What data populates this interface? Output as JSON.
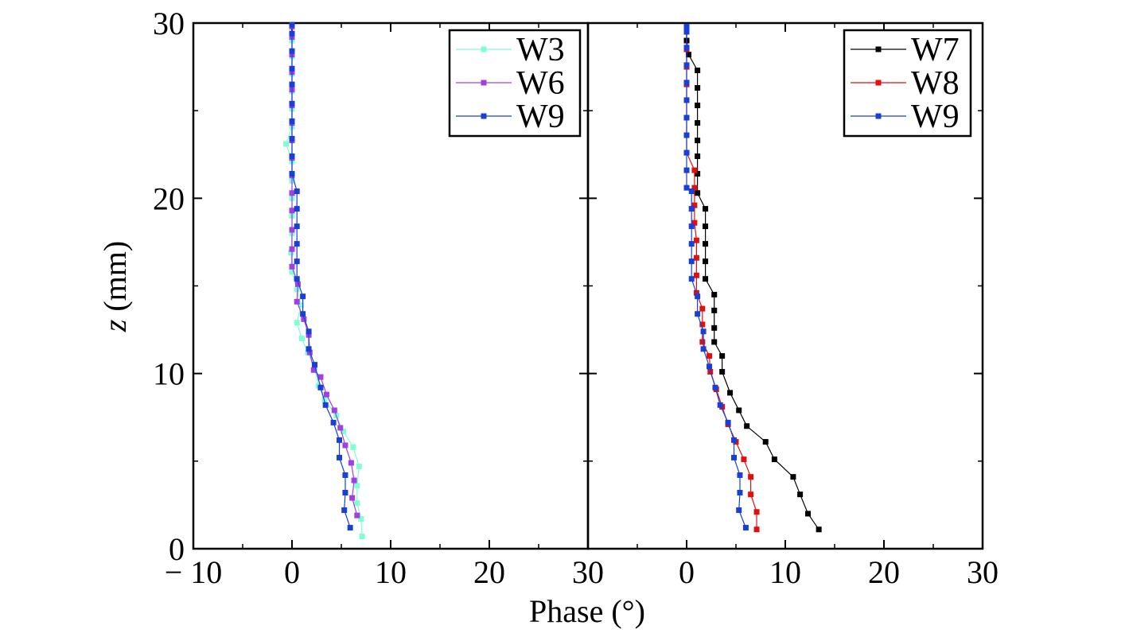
{
  "chart_data": {
    "type": "line",
    "xlabel": "Phase (°)",
    "ylabel_italic": "z",
    "ylabel_rest": " (mm)",
    "ylim": [
      0,
      30
    ],
    "y_ticks": [
      0,
      10,
      20,
      30
    ],
    "y_tick_labels": [
      "0",
      "10",
      "20",
      "30"
    ],
    "grid": false,
    "legend_placement": "top-right",
    "panels": [
      {
        "xlim": [
          -10,
          30
        ],
        "x_ticks": [
          -10,
          0,
          10,
          20
        ],
        "x_tick_labels": [
          "− 10",
          "0",
          "10",
          "20"
        ],
        "series": [
          {
            "name": "W3",
            "color": "#7fffd4",
            "points": [
              [
                7.1,
                0.7
              ],
              [
                7.0,
                1.7
              ],
              [
                6.6,
                2.6
              ],
              [
                6.6,
                3.6
              ],
              [
                6.8,
                4.7
              ],
              [
                6.2,
                5.8
              ],
              [
                5.2,
                6.7
              ],
              [
                4.5,
                7.6
              ],
              [
                3.3,
                8.5
              ],
              [
                2.7,
                9.3
              ],
              [
                2.3,
                10.3
              ],
              [
                1.6,
                11.2
              ],
              [
                1.0,
                12.0
              ],
              [
                0.5,
                12.9
              ],
              [
                0.9,
                13.9
              ],
              [
                0.5,
                14.8
              ],
              [
                0.0,
                15.8
              ],
              [
                -0.1,
                16.9
              ],
              [
                0.0,
                18.0
              ],
              [
                0.0,
                19.0
              ],
              [
                0.0,
                20.0
              ],
              [
                0.0,
                21.0
              ],
              [
                0.0,
                22.1
              ],
              [
                -0.6,
                23.1
              ],
              [
                0.0,
                24.1
              ],
              [
                0.0,
                25.1
              ],
              [
                0.0,
                26.1
              ],
              [
                0.0,
                27.1
              ],
              [
                0.0,
                28.1
              ],
              [
                0.0,
                29.0
              ],
              [
                0.0,
                29.8
              ]
            ]
          },
          {
            "name": "W6",
            "color": "#a040e0",
            "points": [
              [
                6.6,
                1.9
              ],
              [
                6.1,
                2.9
              ],
              [
                6.3,
                3.9
              ],
              [
                6.0,
                4.9
              ],
              [
                5.4,
                5.9
              ],
              [
                4.9,
                6.9
              ],
              [
                4.3,
                7.9
              ],
              [
                3.5,
                8.8
              ],
              [
                2.9,
                9.8
              ],
              [
                2.2,
                10.2
              ],
              [
                1.8,
                11.2
              ],
              [
                1.7,
                12.2
              ],
              [
                1.2,
                13.1
              ],
              [
                0.5,
                14.1
              ],
              [
                0.6,
                15.1
              ],
              [
                0.0,
                16.1
              ],
              [
                0.0,
                17.1
              ],
              [
                0.0,
                18.2
              ],
              [
                0.0,
                19.3
              ],
              [
                0.0,
                20.3
              ],
              [
                0.0,
                21.3
              ],
              [
                0.0,
                22.3
              ],
              [
                0.0,
                23.3
              ],
              [
                0.0,
                24.3
              ],
              [
                0.0,
                25.3
              ],
              [
                0.0,
                26.2
              ],
              [
                0.0,
                27.2
              ],
              [
                0.0,
                28.2
              ],
              [
                0.0,
                29.2
              ],
              [
                0.0,
                29.8
              ]
            ]
          },
          {
            "name": "W9",
            "color": "#1a3fd6",
            "points": [
              [
                5.9,
                1.2
              ],
              [
                5.3,
                2.2
              ],
              [
                5.4,
                3.2
              ],
              [
                5.4,
                4.2
              ],
              [
                4.8,
                5.2
              ],
              [
                4.8,
                6.2
              ],
              [
                4.2,
                7.2
              ],
              [
                3.4,
                8.2
              ],
              [
                2.9,
                9.2
              ],
              [
                2.3,
                10.5
              ],
              [
                1.7,
                11.4
              ],
              [
                1.7,
                12.4
              ],
              [
                1.1,
                13.4
              ],
              [
                1.1,
                14.4
              ],
              [
                0.5,
                15.4
              ],
              [
                0.5,
                16.4
              ],
              [
                0.5,
                17.4
              ],
              [
                0.5,
                18.4
              ],
              [
                0.5,
                19.4
              ],
              [
                0.5,
                20.4
              ],
              [
                0.0,
                21.4
              ],
              [
                0.0,
                22.4
              ],
              [
                0.0,
                23.4
              ],
              [
                0.0,
                24.4
              ],
              [
                0.0,
                25.4
              ],
              [
                0.0,
                26.5
              ],
              [
                0.0,
                27.4
              ],
              [
                0.0,
                28.4
              ],
              [
                0.0,
                29.4
              ],
              [
                0.0,
                29.9
              ]
            ]
          }
        ]
      },
      {
        "xlim": [
          -10,
          30
        ],
        "x_ticks": [
          0,
          10,
          20
        ],
        "x_tick_labels": [
          "0",
          "10",
          "20"
        ],
        "series": [
          {
            "name": "W7",
            "color": "#000000",
            "points": [
              [
                13.4,
                1.1
              ],
              [
                12.3,
                2.0
              ],
              [
                11.5,
                3.1
              ],
              [
                10.8,
                4.1
              ],
              [
                8.9,
                5.1
              ],
              [
                8.0,
                6.1
              ],
              [
                6.1,
                7.0
              ],
              [
                5.3,
                7.9
              ],
              [
                4.4,
                8.9
              ],
              [
                3.6,
                10.1
              ],
              [
                3.6,
                11.0
              ],
              [
                2.8,
                11.8
              ],
              [
                2.8,
                12.6
              ],
              [
                2.8,
                13.6
              ],
              [
                2.8,
                14.5
              ],
              [
                1.9,
                15.4
              ],
              [
                1.9,
                16.4
              ],
              [
                1.9,
                17.4
              ],
              [
                1.9,
                18.4
              ],
              [
                1.9,
                19.4
              ],
              [
                1.1,
                20.3
              ],
              [
                1.1,
                21.4
              ],
              [
                1.1,
                22.4
              ],
              [
                1.1,
                23.3
              ],
              [
                1.1,
                24.3
              ],
              [
                1.1,
                25.3
              ],
              [
                1.1,
                26.3
              ],
              [
                1.1,
                27.3
              ],
              [
                0.2,
                28.2
              ],
              [
                0.0,
                29.0
              ],
              [
                0.0,
                29.8
              ]
            ]
          },
          {
            "name": "W8",
            "color": "#e01010",
            "points": [
              [
                7.1,
                1.1
              ],
              [
                7.1,
                2.1
              ],
              [
                6.5,
                3.1
              ],
              [
                6.5,
                4.1
              ],
              [
                5.8,
                5.1
              ],
              [
                5.0,
                6.1
              ],
              [
                4.2,
                7.1
              ],
              [
                3.6,
                8.1
              ],
              [
                3.0,
                9.1
              ],
              [
                2.4,
                10.1
              ],
              [
                2.3,
                11.0
              ],
              [
                1.6,
                11.8
              ],
              [
                1.6,
                12.8
              ],
              [
                1.6,
                13.7
              ],
              [
                1.0,
                14.6
              ],
              [
                1.0,
                15.6
              ],
              [
                1.0,
                16.6
              ],
              [
                1.0,
                17.6
              ],
              [
                0.8,
                18.6
              ],
              [
                0.8,
                19.6
              ],
              [
                0.8,
                20.6
              ],
              [
                0.8,
                21.6
              ],
              [
                0.0,
                22.6
              ],
              [
                0.0,
                23.6
              ],
              [
                0.0,
                24.6
              ],
              [
                0.0,
                25.6
              ],
              [
                0.0,
                26.5
              ],
              [
                0.0,
                27.5
              ],
              [
                0.0,
                28.5
              ],
              [
                0.0,
                29.5
              ]
            ]
          },
          {
            "name": "W9",
            "color": "#1a3fd6",
            "points": [
              [
                6.0,
                1.2
              ],
              [
                5.3,
                2.2
              ],
              [
                5.4,
                3.2
              ],
              [
                5.4,
                4.2
              ],
              [
                4.8,
                5.2
              ],
              [
                4.8,
                6.2
              ],
              [
                4.2,
                7.2
              ],
              [
                3.4,
                8.2
              ],
              [
                2.9,
                9.2
              ],
              [
                2.3,
                10.4
              ],
              [
                1.7,
                11.4
              ],
              [
                1.7,
                12.4
              ],
              [
                1.1,
                13.4
              ],
              [
                1.1,
                14.4
              ],
              [
                0.5,
                15.4
              ],
              [
                0.5,
                16.4
              ],
              [
                0.5,
                17.4
              ],
              [
                0.5,
                18.4
              ],
              [
                0.5,
                19.4
              ],
              [
                0.5,
                20.4
              ],
              [
                0.0,
                20.6
              ],
              [
                0.0,
                21.6
              ],
              [
                0.0,
                22.6
              ],
              [
                0.0,
                23.6
              ],
              [
                0.0,
                24.6
              ],
              [
                0.0,
                25.6
              ],
              [
                0.0,
                26.6
              ],
              [
                0.0,
                27.6
              ],
              [
                0.0,
                28.6
              ],
              [
                0.0,
                29.5
              ],
              [
                0.0,
                29.8
              ]
            ]
          }
        ]
      }
    ],
    "shared_edge_tick_label": "30"
  }
}
